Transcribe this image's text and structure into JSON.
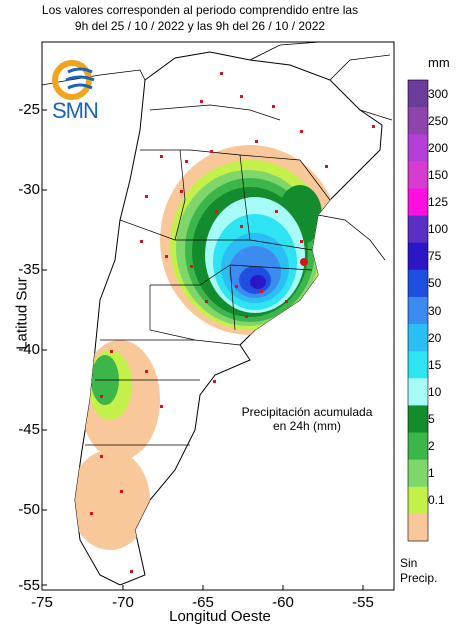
{
  "header": {
    "line1": "Los valores corresponden al periodo comprendido entre las",
    "line2": "9h del 25 / 10 / 2022  y las 9h del 26 / 10 / 2022"
  },
  "logo": {
    "text": "SMN",
    "icon": "smn-logo-icon"
  },
  "axes": {
    "ylabel": "Latitud Sur",
    "xlabel": "Longitud Oeste",
    "yticks": [
      "-25",
      "-30",
      "-35",
      "-40",
      "-45",
      "-50",
      "-55"
    ],
    "xticks": [
      "-75",
      "-70",
      "-65",
      "-60",
      "-55"
    ]
  },
  "legend": {
    "unit": "mm",
    "levels": [
      {
        "label": "300",
        "color": "#6a3d9a"
      },
      {
        "label": "250",
        "color": "#8e44ad"
      },
      {
        "label": "200",
        "color": "#b43fd8"
      },
      {
        "label": "150",
        "color": "#d63ccf"
      },
      {
        "label": "125",
        "color": "#ff10e0"
      },
      {
        "label": "100",
        "color": "#5a2fc4"
      },
      {
        "label": "75",
        "color": "#2b17c8"
      },
      {
        "label": "50",
        "color": "#1f4fe0"
      },
      {
        "label": "30",
        "color": "#3c8cf0"
      },
      {
        "label": "20",
        "color": "#2bbef4"
      },
      {
        "label": "15",
        "color": "#2ee3f2"
      },
      {
        "label": "10",
        "color": "#a7fbf6"
      },
      {
        "label": "5",
        "color": "#138c2e"
      },
      {
        "label": "2",
        "color": "#3cb64a"
      },
      {
        "label": "1",
        "color": "#7fd66b"
      },
      {
        "label": "0.1",
        "color": "#c4f04a"
      },
      {
        "label": "",
        "color": "#f9c89a"
      }
    ],
    "no_data": "Sin\nPrecip."
  },
  "annotation": {
    "line1": "Precipitación acumulada",
    "line2": "en 24h (mm)"
  }
}
